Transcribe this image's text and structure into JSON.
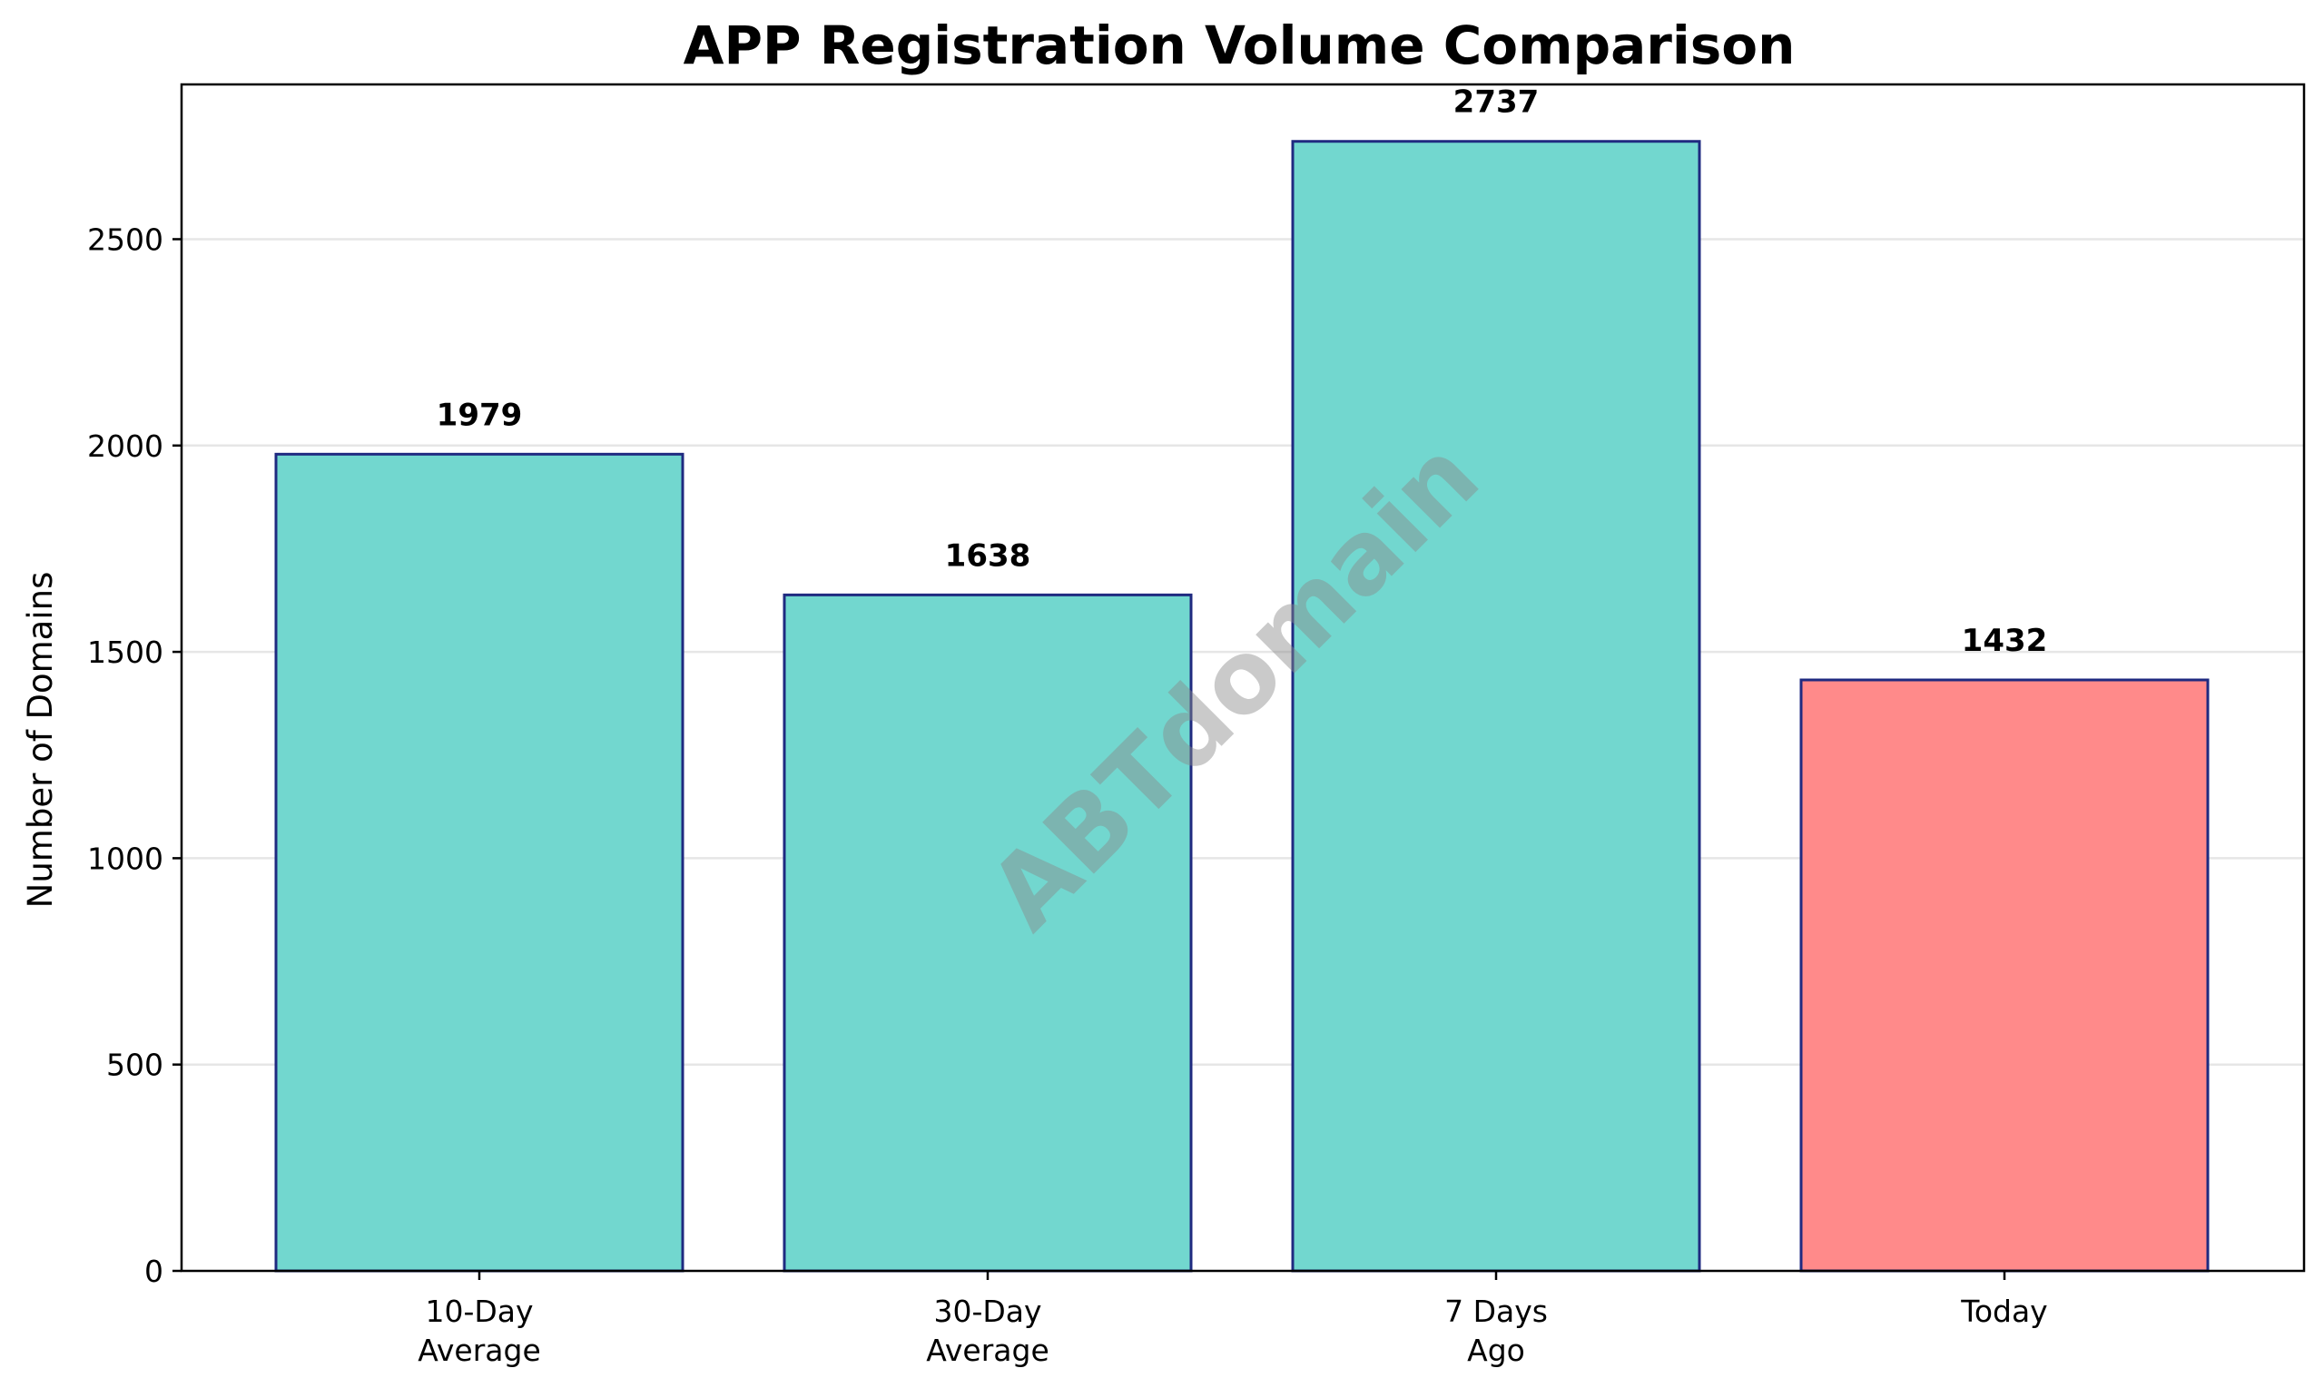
{
  "chart_data": {
    "type": "bar",
    "title": "APP Registration Volume Comparison",
    "xlabel": "",
    "ylabel": "Number of Domains",
    "categories": [
      [
        "10-Day",
        "Average"
      ],
      [
        "30-Day",
        "Average"
      ],
      [
        "7 Days",
        "Ago"
      ],
      [
        "Today"
      ]
    ],
    "values": [
      1979,
      1638,
      2737,
      1432
    ],
    "value_labels": [
      "1979",
      "1638",
      "2737",
      "1432"
    ],
    "bar_colors": [
      "#72d7cf",
      "#72d7cf",
      "#72d7cf",
      "#ff8a8a"
    ],
    "bar_edge_color": "#1f2a80",
    "ylim": [
      0,
      2875
    ],
    "yticks": [
      0,
      500,
      1000,
      1500,
      2000,
      2500
    ],
    "grid": "y",
    "gridline_color": "#e6e6e6"
  },
  "watermark": {
    "text": "ABTdomain"
  }
}
